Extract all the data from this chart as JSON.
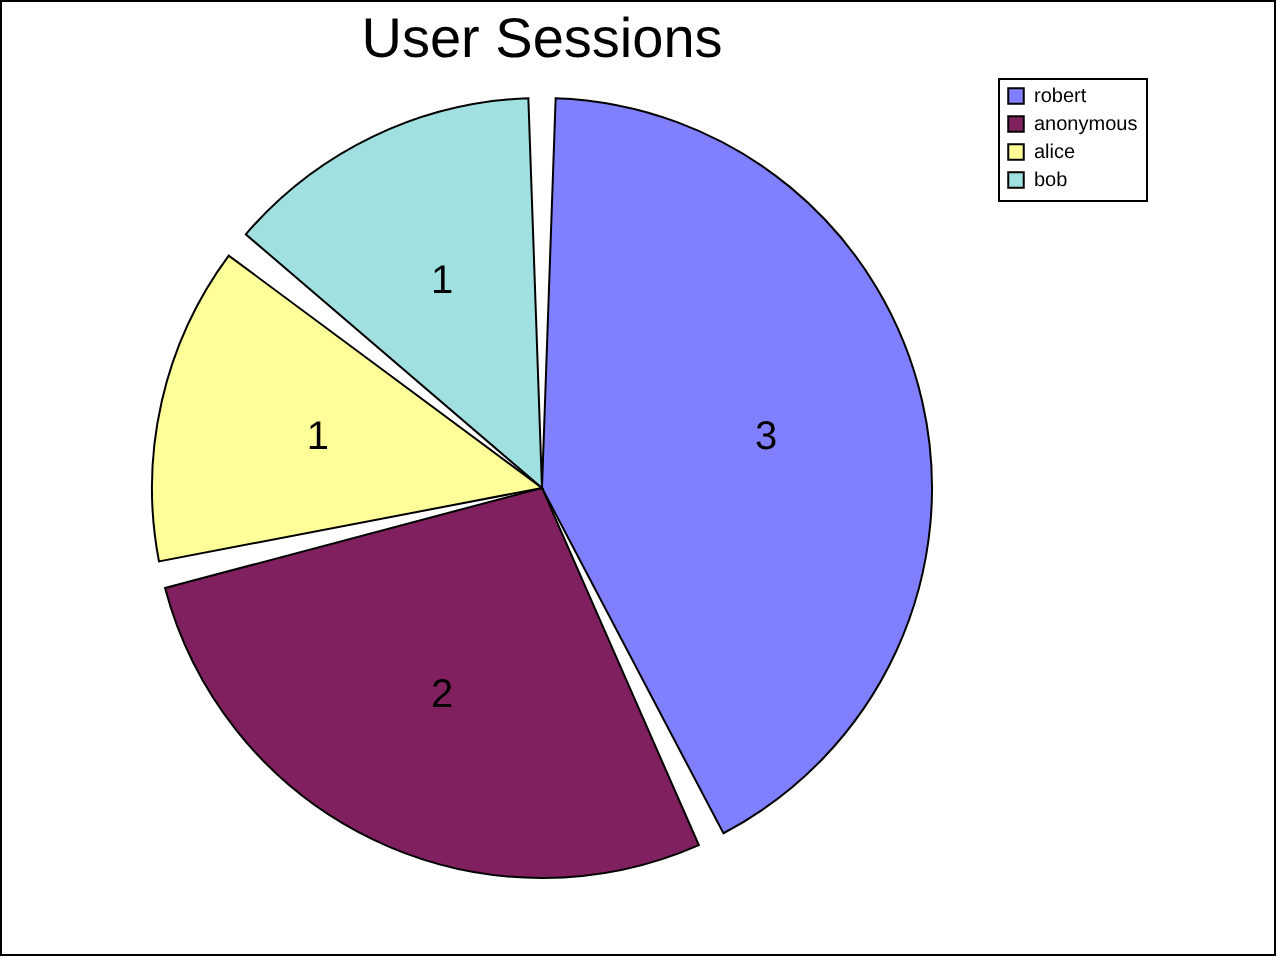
{
  "chart_data": {
    "type": "pie",
    "title": "User Sessions",
    "categories": [
      "robert",
      "anonymous",
      "alice",
      "bob"
    ],
    "values": [
      3,
      2,
      1,
      1
    ],
    "colors": [
      "#8080ff",
      "#80205f",
      "#ffff99",
      "#a0e0e0"
    ],
    "data_labels": true,
    "legend": "right"
  }
}
